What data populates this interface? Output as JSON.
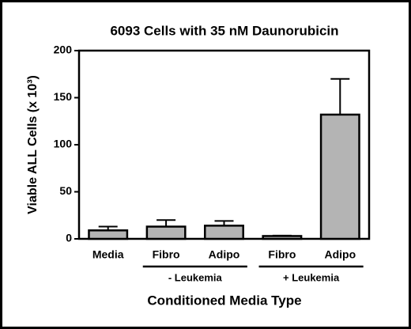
{
  "chart_data": {
    "type": "bar",
    "title": "6093 Cells with 35 nM Daunorubicin",
    "ylabel": "Viable ALL Cells (x 10³)",
    "xlabel": "Conditioned Media Type",
    "categories": [
      "Media",
      "Fibro",
      "Adipo",
      "Fibro",
      "Adipo"
    ],
    "category_groups": [
      null,
      "- Leukemia",
      "- Leukemia",
      "+ Leukemia",
      "+ Leukemia"
    ],
    "values": [
      9,
      13,
      14,
      3,
      132
    ],
    "errors": [
      4,
      7,
      5,
      0.5,
      38
    ],
    "color": "#b4b4b4",
    "ylim": [
      0,
      200
    ],
    "yticks": [
      0,
      50,
      100,
      150,
      200
    ]
  }
}
